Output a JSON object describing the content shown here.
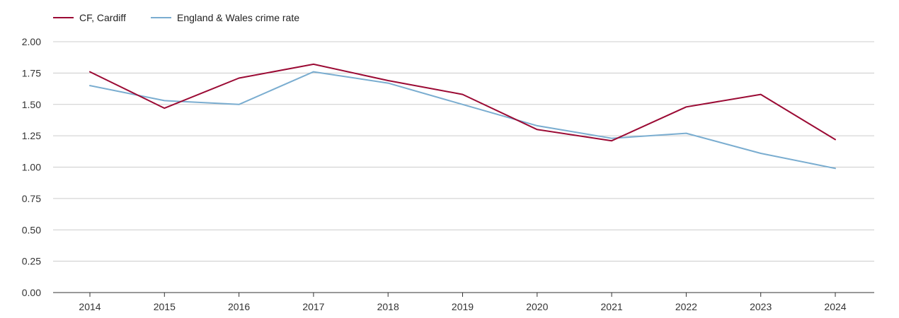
{
  "chart_data": {
    "type": "line",
    "title": "",
    "xlabel": "",
    "ylabel": "",
    "x": [
      "2014",
      "2015",
      "2016",
      "2017",
      "2018",
      "2019",
      "2020",
      "2021",
      "2022",
      "2023",
      "2024"
    ],
    "ylim": [
      0,
      2
    ],
    "yticks": [
      "0.00",
      "0.25",
      "0.50",
      "0.75",
      "1.00",
      "1.25",
      "1.50",
      "1.75",
      "2.00"
    ],
    "grid": true,
    "legend": "top-left",
    "series": [
      {
        "name": "CF, Cardiff",
        "color": "#9b0a34",
        "values": [
          1.76,
          1.47,
          1.71,
          1.82,
          1.69,
          1.58,
          1.3,
          1.21,
          1.48,
          1.58,
          1.22
        ]
      },
      {
        "name": "England & Wales crime rate",
        "color": "#7aadd0",
        "values": [
          1.65,
          1.53,
          1.5,
          1.76,
          1.67,
          1.5,
          1.33,
          1.23,
          1.27,
          1.11,
          0.99
        ]
      }
    ]
  }
}
